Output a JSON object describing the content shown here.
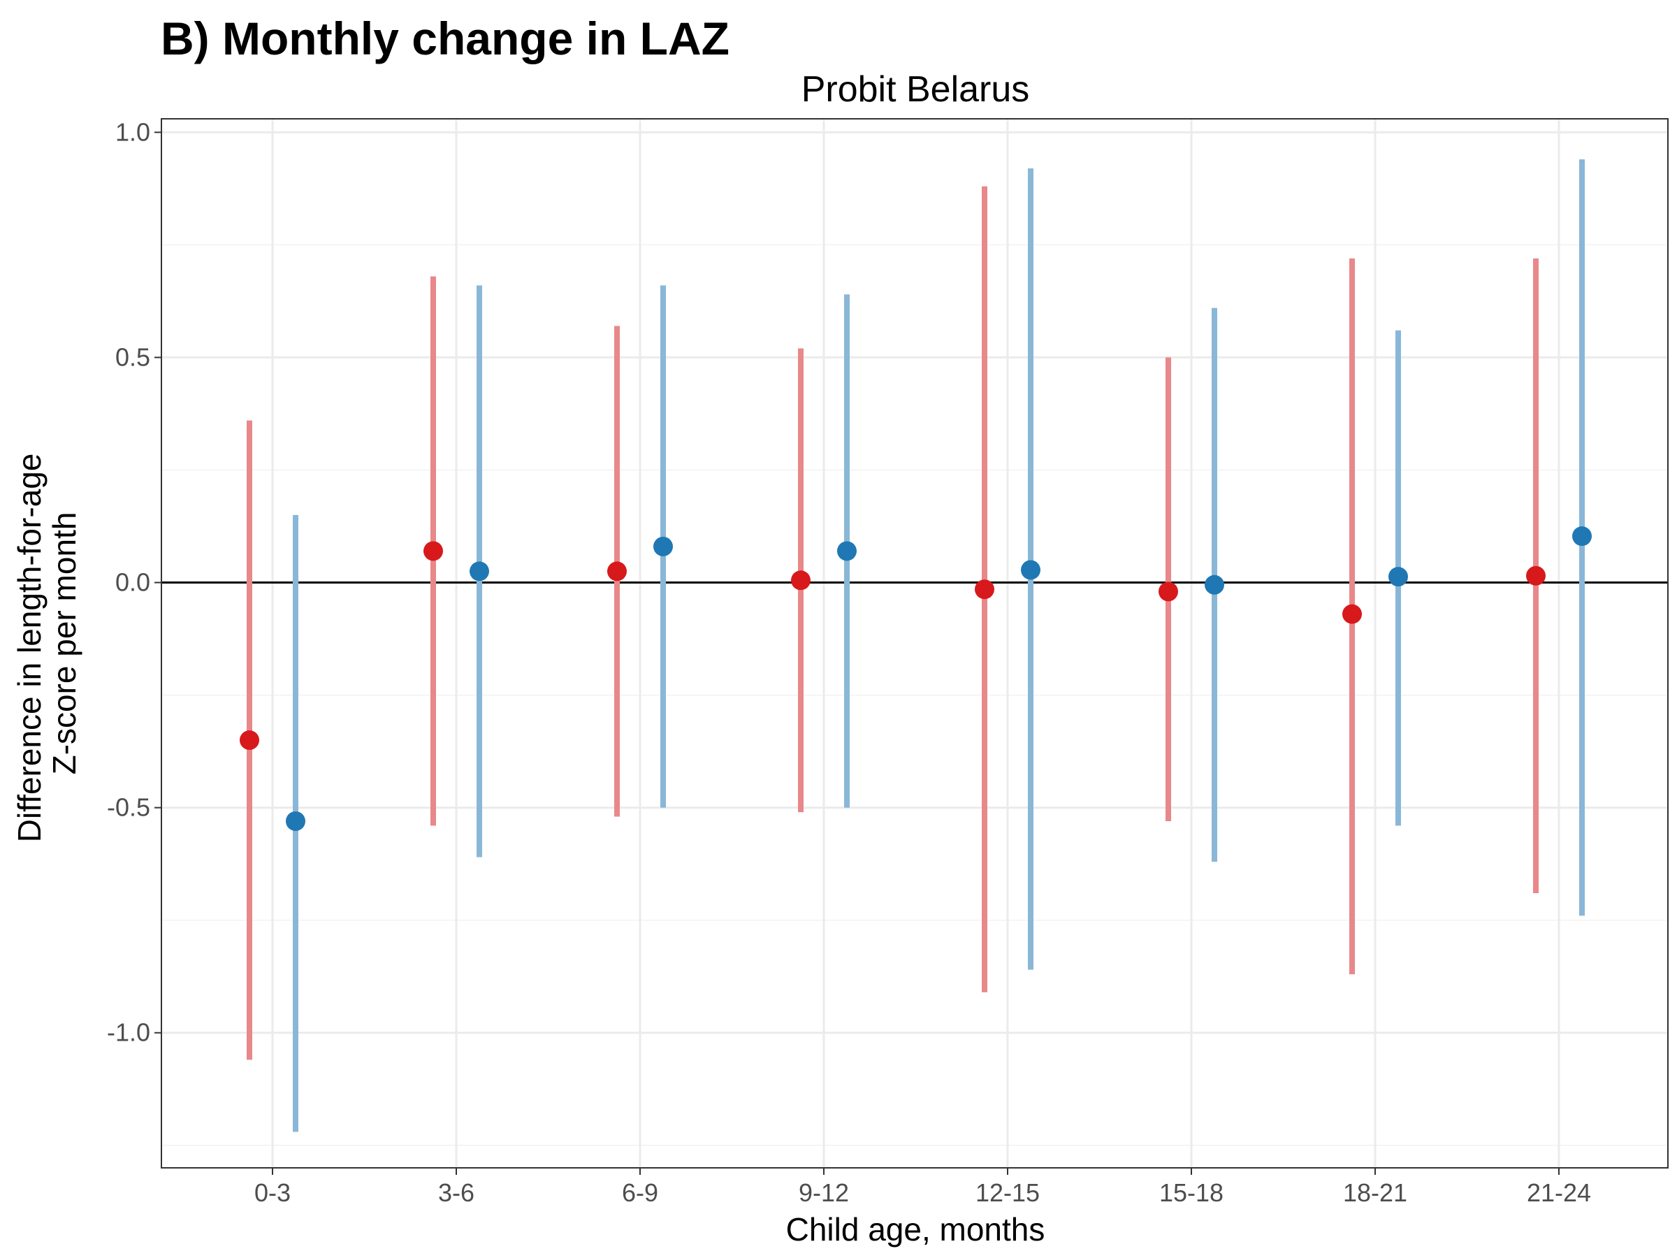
{
  "chart_data": {
    "type": "scatter",
    "title": "B) Monthly change in LAZ",
    "subtitle": "Probit Belarus",
    "xlabel": "Child age, months",
    "ylabel": [
      "Difference in length-for-age",
      "Z-score per month"
    ],
    "categories": [
      "0-3",
      "3-6",
      "6-9",
      "9-12",
      "12-15",
      "15-18",
      "18-21",
      "21-24"
    ],
    "ylim": [
      -1.3,
      1.03
    ],
    "yticks": [
      -1.0,
      -0.5,
      0.0,
      0.5,
      1.0
    ],
    "ytick_labels": [
      "-1.0",
      "-0.5",
      "0.0",
      "0.5",
      "1.0"
    ],
    "reference_line": 0,
    "grid": true,
    "series": [
      {
        "color_point": "#d7191c",
        "color_bar": "#e8888a",
        "values": [
          -0.35,
          0.07,
          0.025,
          0.005,
          -0.015,
          -0.02,
          -0.07,
          0.015
        ],
        "lower": [
          -1.06,
          -0.54,
          -0.52,
          -0.51,
          -0.91,
          -0.53,
          -0.87,
          -0.69
        ],
        "upper": [
          0.36,
          0.68,
          0.57,
          0.52,
          0.88,
          0.5,
          0.72,
          0.72
        ]
      },
      {
        "color_point": "#1f78b4",
        "color_bar": "#8ab7d8",
        "values": [
          -0.53,
          0.025,
          0.08,
          0.07,
          0.028,
          -0.005,
          0.013,
          0.103
        ],
        "lower": [
          -1.22,
          -0.61,
          -0.5,
          -0.5,
          -0.86,
          -0.62,
          -0.54,
          -0.74
        ],
        "upper": [
          0.15,
          0.66,
          0.66,
          0.64,
          0.92,
          0.61,
          0.56,
          0.94
        ]
      }
    ]
  }
}
